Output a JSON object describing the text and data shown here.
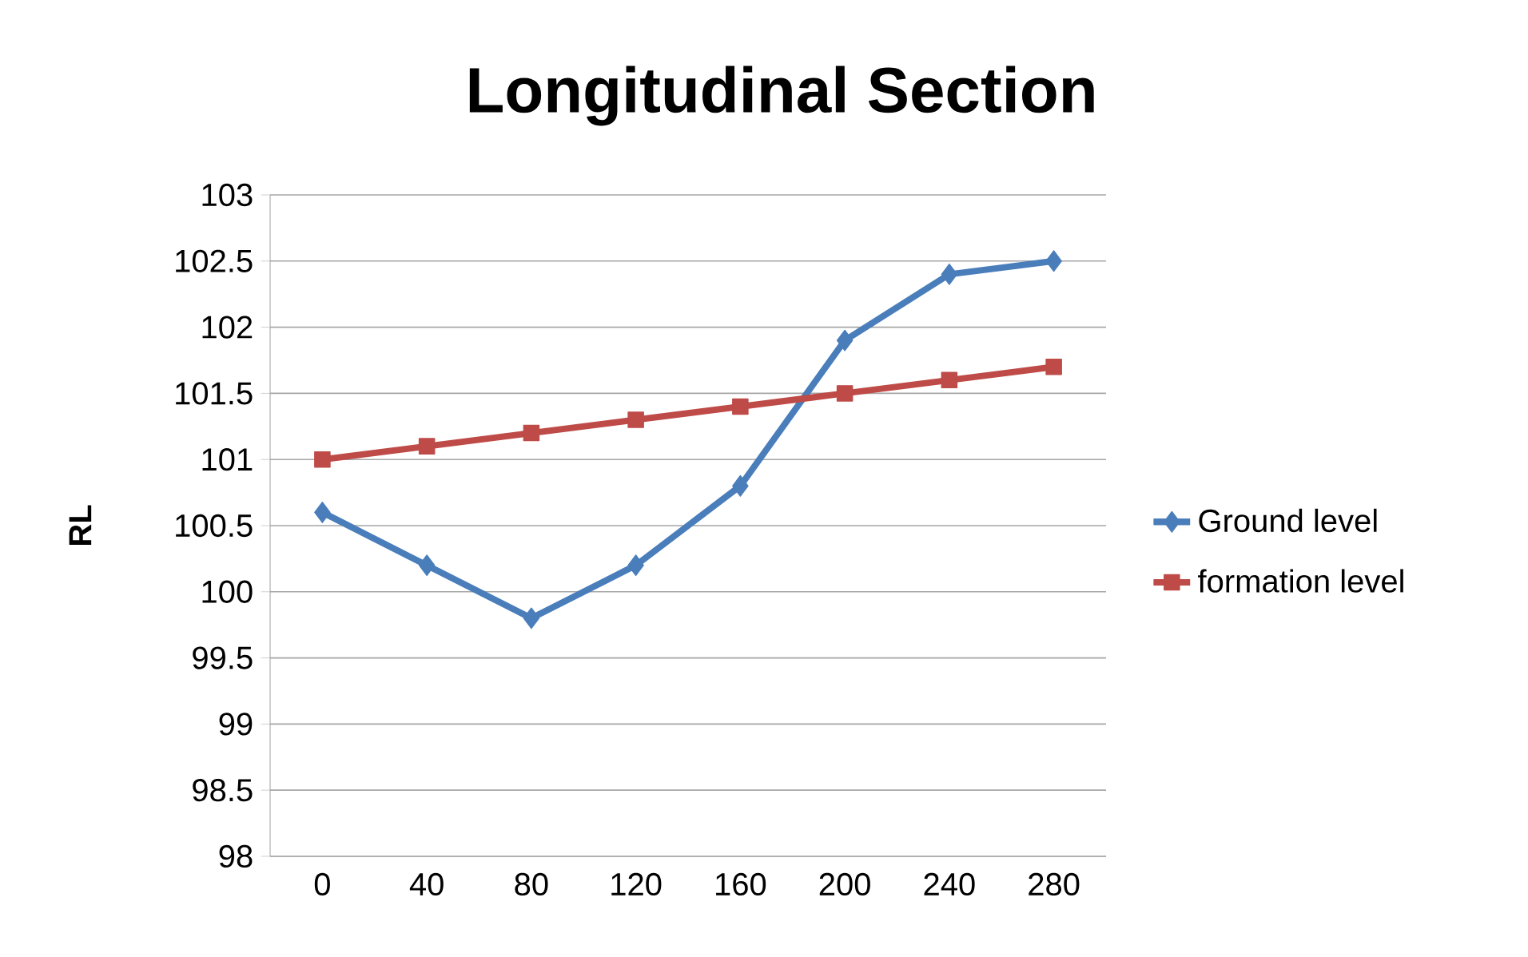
{
  "chart_data": {
    "type": "line",
    "title": "Longitudinal Section",
    "ylabel": "RL",
    "categories": [
      "0",
      "40",
      "80",
      "120",
      "160",
      "200",
      "240",
      "280"
    ],
    "series": [
      {
        "name": "Ground level",
        "color": "#4a7ebb",
        "marker": "diamond",
        "values": [
          100.6,
          100.2,
          99.8,
          100.2,
          100.8,
          101.9,
          102.4,
          102.5
        ]
      },
      {
        "name": "formation level",
        "color": "#be4b48",
        "marker": "square",
        "values": [
          101,
          101.1,
          101.2,
          101.3,
          101.4,
          101.5,
          101.6,
          101.7
        ]
      }
    ],
    "ylim": [
      98,
      103
    ],
    "yticks": [
      98,
      98.5,
      99,
      99.5,
      100,
      100.5,
      101,
      101.5,
      102,
      102.5,
      103
    ],
    "grid": "y",
    "legend": "right",
    "line_style": "solid"
  }
}
